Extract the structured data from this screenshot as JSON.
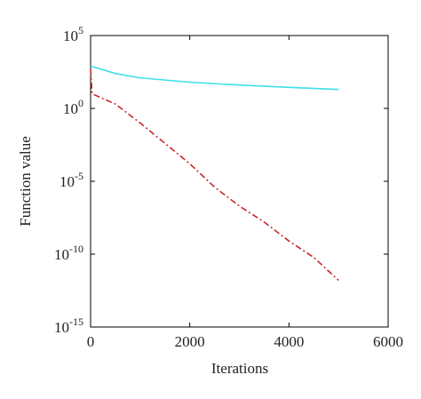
{
  "chart_data": {
    "type": "line",
    "xlabel": "Iterations",
    "ylabel": "Function value",
    "xlim": [
      0,
      6000
    ],
    "xticks": [
      0,
      2000,
      4000,
      6000
    ],
    "ylim": [
      1e-15,
      100000
    ],
    "ylog": true,
    "yticks": [
      {
        "value": 100000,
        "label": "10^5"
      },
      {
        "value": 1,
        "label": "10^0"
      },
      {
        "value": 1e-05,
        "label": "10^-5"
      },
      {
        "value": 1e-10,
        "label": "10^-10"
      },
      {
        "value": 1e-15,
        "label": "10^-15"
      }
    ],
    "series": [
      {
        "color": "#3ee0e6",
        "style": "solid",
        "x": [
          0,
          500,
          1000,
          2000,
          3000,
          4000,
          5000
        ],
        "values": [
          800,
          250,
          125,
          63,
          40,
          28,
          20
        ]
      },
      {
        "color": "#c8282a",
        "style": "dashdot",
        "x": [
          0,
          30,
          500,
          1000,
          1500,
          2000,
          2500,
          3000,
          3500,
          4000,
          4500,
          5000
        ],
        "values": [
          500,
          10,
          2,
          0.1,
          0.004,
          0.00016,
          4e-06,
          2e-07,
          1.6e-08,
          8e-10,
          6e-11,
          1.6e-12
        ]
      }
    ]
  }
}
